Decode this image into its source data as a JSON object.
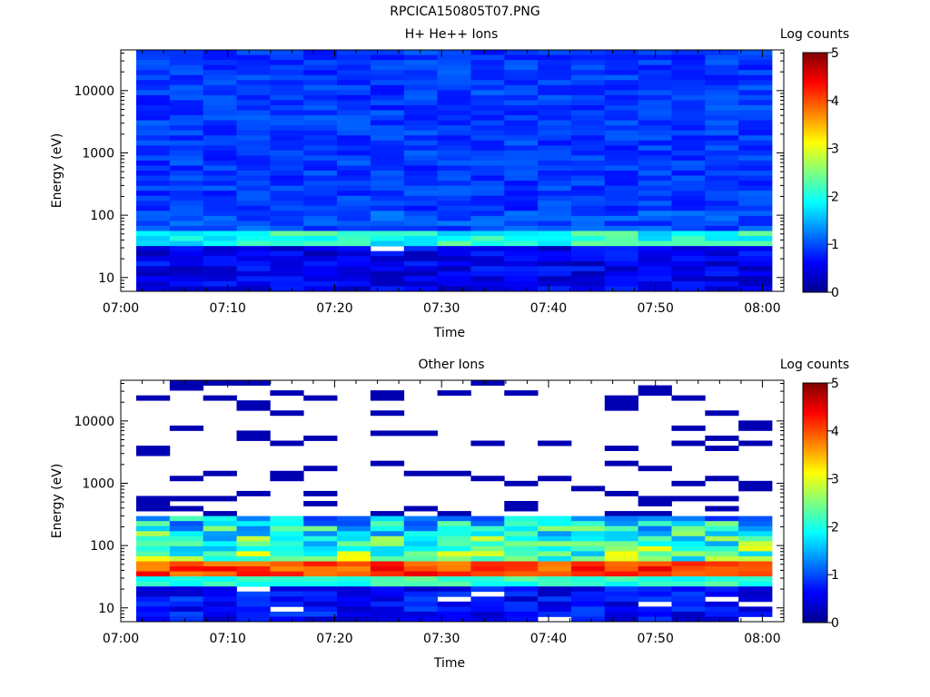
{
  "figure": {
    "title": "RPCICA150805T07.PNG"
  },
  "colorbar": {
    "label": "Log counts",
    "ticks": [
      "0",
      "1",
      "2",
      "3",
      "4",
      "5"
    ],
    "range": [
      0,
      5
    ]
  },
  "chart_data": [
    {
      "type": "heatmap",
      "title": "H+ He++ Ions",
      "xlabel": "Time",
      "ylabel": "Energy (eV)",
      "y_scale": "log",
      "xlim": [
        "07:00",
        "08:02"
      ],
      "ylim": [
        6,
        45000
      ],
      "x_ticks": [
        "07:00",
        "07:10",
        "07:20",
        "07:30",
        "07:40",
        "07:50",
        "08:00"
      ],
      "y_ticks": [
        "10",
        "100",
        "1000",
        "10000"
      ],
      "columns": 19,
      "column_start": "07:01",
      "column_step_minutes": 3.2,
      "rows": 48,
      "values_log_counts": "mostly 0.8–1.3 above 100 eV; peak band 1.5–2.4 near 35–55 eV; 0.2–0.9 below 30 eV; one empty cell near 07:26 at ~30 eV",
      "colorbar_label": "Log counts",
      "colorbar_range": [
        0,
        5
      ]
    },
    {
      "type": "heatmap",
      "title": "Other Ions",
      "xlabel": "Time",
      "ylabel": "Energy (eV)",
      "y_scale": "log",
      "xlim": [
        "07:00",
        "08:02"
      ],
      "ylim": [
        6,
        45000
      ],
      "x_ticks": [
        "07:00",
        "07:10",
        "07:20",
        "07:30",
        "07:40",
        "07:50",
        "08:00"
      ],
      "y_ticks": [
        "10",
        "100",
        "1000",
        "10000"
      ],
      "columns": 19,
      "column_start": "07:01",
      "column_step_minutes": 3.2,
      "rows": 48,
      "values_log_counts": "sparse ~0.2 lines above 300 eV; 0.5–3.0 between 60–300 eV; peak 4.0–4.5 near 30–55 eV; 0.3–1.0 below 25 eV with a few empty cells",
      "colorbar_label": "Log counts",
      "colorbar_range": [
        0,
        5
      ]
    }
  ]
}
